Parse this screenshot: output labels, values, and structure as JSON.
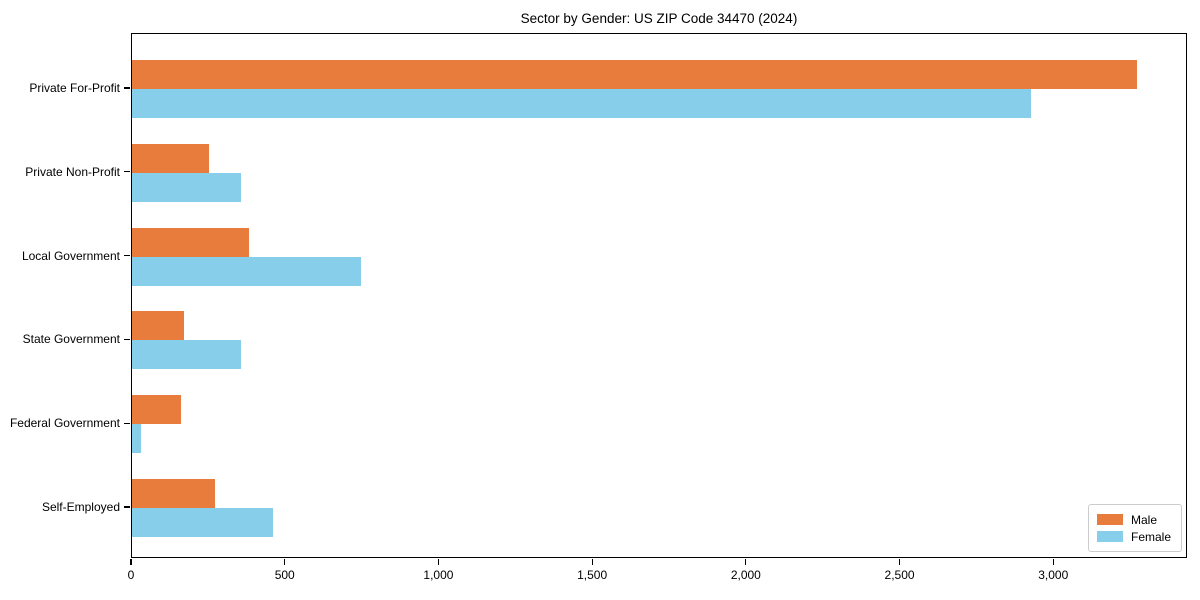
{
  "chart_data": {
    "type": "bar",
    "orientation": "horizontal",
    "grouped": true,
    "title": "Sector by Gender: US ZIP Code 34470 (2024)",
    "xlabel": "",
    "ylabel": "",
    "categories": [
      "Private For-Profit",
      "Private Non-Profit",
      "Local Government",
      "State Government",
      "Federal Government",
      "Self-Employed"
    ],
    "series": [
      {
        "name": "Male",
        "color": "#e87c3c",
        "values": [
          3270,
          250,
          380,
          170,
          160,
          270
        ]
      },
      {
        "name": "Female",
        "color": "#87ceeb",
        "values": [
          2925,
          355,
          745,
          355,
          30,
          460
        ]
      }
    ],
    "xlim": [
      0,
      3435
    ],
    "x_ticks": [
      0,
      500,
      1000,
      1500,
      2000,
      2500,
      3000
    ],
    "x_tick_labels": [
      "0",
      "500",
      "1,000",
      "1,500",
      "2,000",
      "2,500",
      "3,000"
    ],
    "grid": false,
    "legend_position": "lower right"
  }
}
